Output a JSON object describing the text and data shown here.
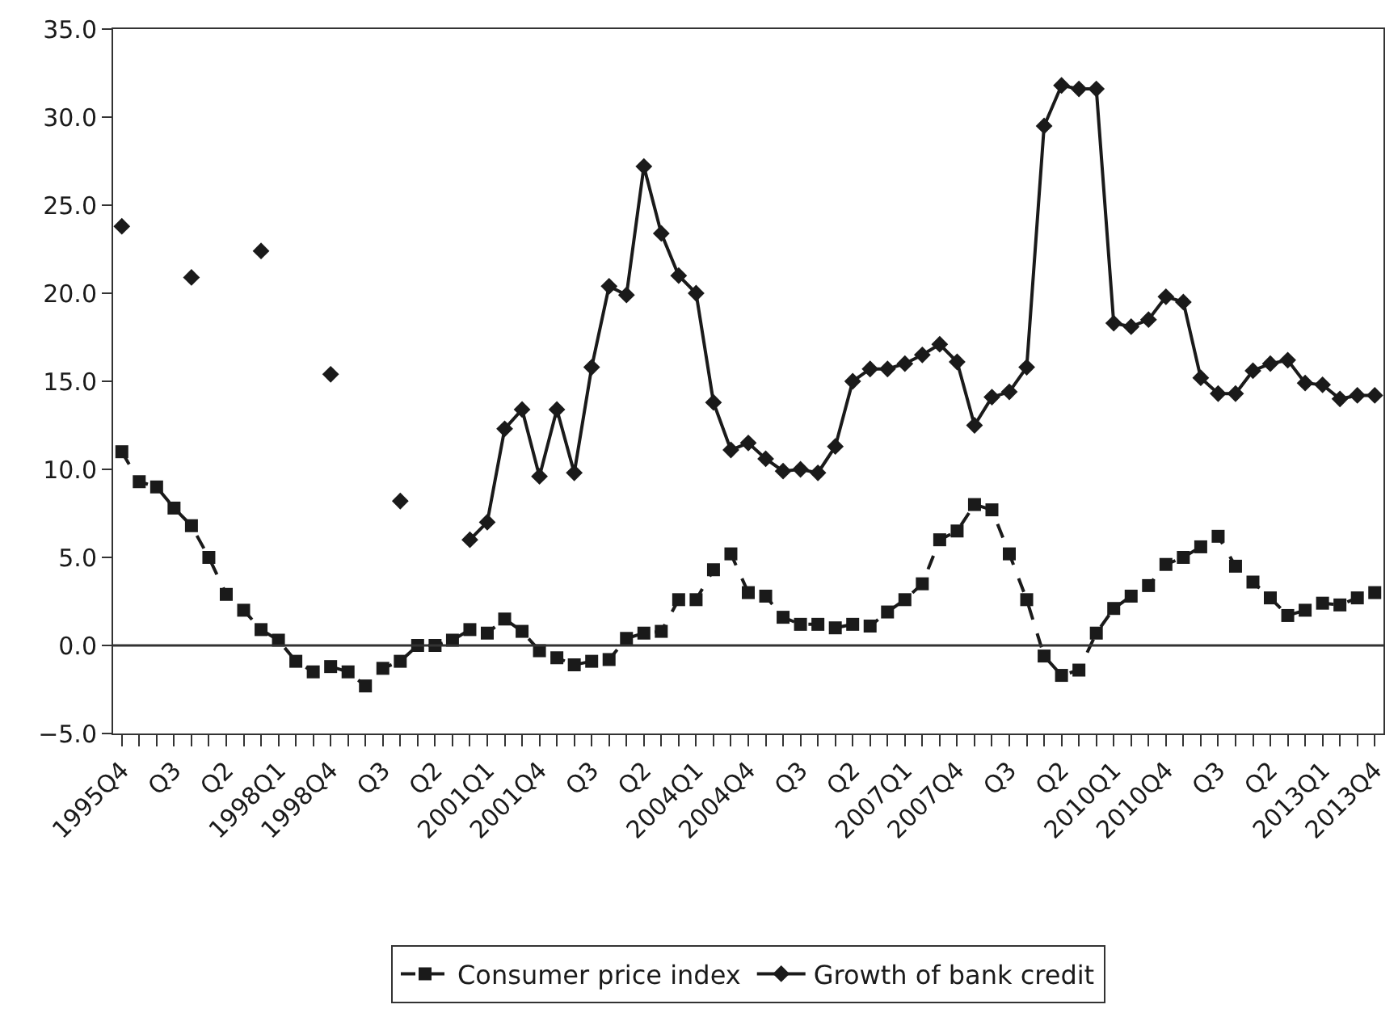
{
  "chart_data": {
    "type": "line",
    "categories": [
      "1995Q4",
      null,
      null,
      "Q3",
      null,
      null,
      "Q2",
      null,
      null,
      "1998Q1",
      null,
      null,
      "1998Q4",
      null,
      null,
      "Q3",
      null,
      null,
      "Q2",
      null,
      null,
      "2001Q1",
      null,
      null,
      "2001Q4",
      null,
      null,
      "Q3",
      null,
      null,
      "Q2",
      null,
      null,
      "2004Q1",
      null,
      null,
      "2004Q4",
      null,
      null,
      "Q3",
      null,
      null,
      "Q2",
      null,
      null,
      "2007Q1",
      null,
      null,
      "2007Q4",
      null,
      null,
      "Q3",
      null,
      null,
      "Q2",
      null,
      null,
      "2010Q1",
      null,
      null,
      "2010Q4",
      null,
      null,
      "Q3",
      null,
      null,
      "Q2",
      null,
      null,
      "2013Q1",
      null,
      null,
      "2013Q4"
    ],
    "series": [
      {
        "name": "Consumer price index",
        "color": "#1a1a1a",
        "marker": "square",
        "line_style": "dashed",
        "values": [
          11.0,
          9.3,
          9.0,
          7.8,
          6.8,
          5.0,
          2.9,
          2.0,
          0.9,
          0.3,
          -0.9,
          -1.5,
          -1.2,
          -1.5,
          -2.3,
          -1.3,
          -0.9,
          0.0,
          0.0,
          0.3,
          0.9,
          0.7,
          1.5,
          0.8,
          -0.3,
          -0.7,
          -1.1,
          -0.9,
          -0.8,
          0.4,
          0.7,
          0.8,
          2.6,
          2.6,
          4.3,
          5.2,
          3.0,
          2.8,
          1.6,
          1.2,
          1.2,
          1.0,
          1.2,
          1.1,
          1.9,
          2.6,
          3.5,
          6.0,
          6.5,
          8.0,
          7.7,
          5.2,
          2.6,
          -0.6,
          -1.7,
          -1.4,
          0.7,
          2.1,
          2.8,
          3.4,
          4.6,
          5.0,
          5.6,
          6.2,
          4.5,
          3.6,
          2.7,
          1.7,
          2.0,
          2.4,
          2.3,
          2.7,
          3.0
        ]
      },
      {
        "name": "Growth of bank credit",
        "color": "#1a1a1a",
        "marker": "diamond",
        "line_style": "solid",
        "values": [
          23.8,
          null,
          null,
          null,
          20.9,
          null,
          null,
          null,
          22.4,
          null,
          null,
          null,
          15.4,
          null,
          null,
          null,
          8.2,
          null,
          null,
          null,
          6.0,
          7.0,
          12.3,
          13.4,
          9.6,
          13.4,
          9.8,
          15.8,
          20.4,
          19.9,
          27.2,
          23.4,
          21.0,
          20.0,
          13.8,
          11.1,
          11.5,
          10.6,
          9.9,
          10.0,
          9.8,
          11.3,
          15.0,
          15.7,
          15.7,
          16.0,
          16.5,
          17.1,
          16.1,
          12.5,
          14.1,
          14.4,
          15.8,
          29.5,
          31.8,
          31.6,
          31.6,
          18.3,
          18.1,
          18.5,
          19.8,
          19.5,
          15.2,
          14.3,
          14.3,
          15.6,
          16.0,
          16.2,
          14.9,
          14.8,
          14.0,
          14.2,
          14.2
        ]
      }
    ],
    "ylim": [
      -5,
      35
    ],
    "yticks": [
      {
        "value": -5,
        "label": "−5.0"
      },
      {
        "value": 0,
        "label": "0.0"
      },
      {
        "value": 5,
        "label": "5.0"
      },
      {
        "value": 10,
        "label": "10.0"
      },
      {
        "value": 15,
        "label": "15.0"
      },
      {
        "value": 20,
        "label": "20.0"
      },
      {
        "value": 25,
        "label": "25.0"
      },
      {
        "value": 30,
        "label": "30.0"
      },
      {
        "value": 35,
        "label": "35.0"
      }
    ],
    "ref_lines": [
      {
        "axis": "y",
        "value": 0,
        "color": "#333333"
      }
    ],
    "grid": false,
    "legend": "bottom"
  }
}
